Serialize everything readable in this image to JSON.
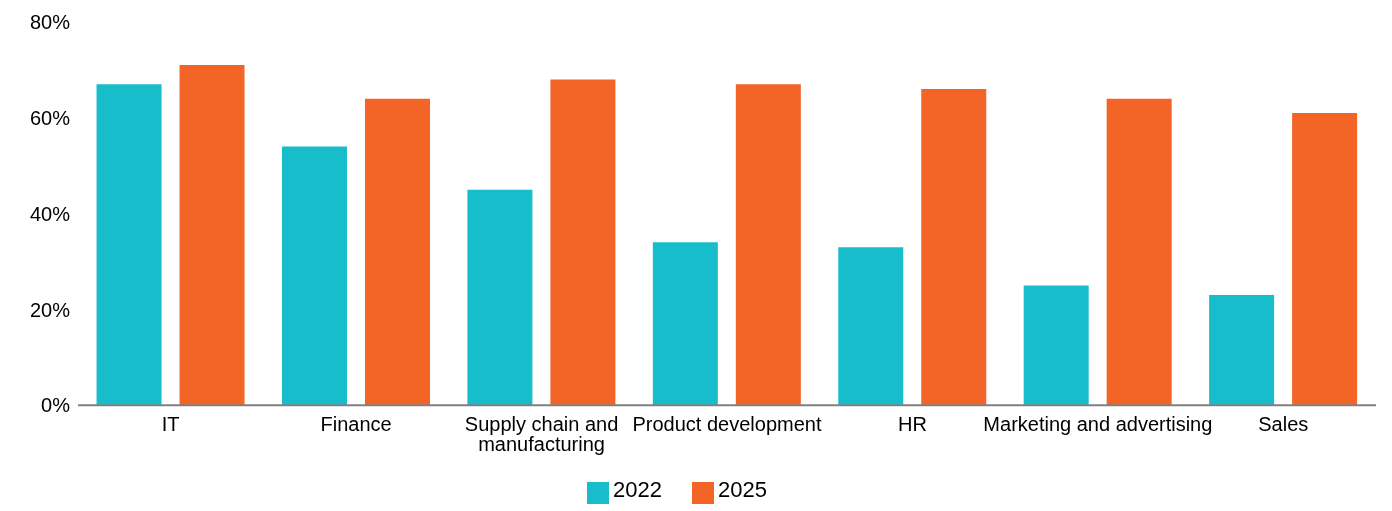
{
  "chart_data": {
    "type": "bar",
    "categories": [
      "IT",
      "Finance",
      "Supply chain and manufacturing",
      "Product development",
      "HR",
      "Marketing and advertising",
      "Sales"
    ],
    "series": [
      {
        "name": "2022",
        "color": "#17bdca",
        "values": [
          67,
          54,
          45,
          34,
          33,
          25,
          23
        ]
      },
      {
        "name": "2025",
        "color": "#f26527",
        "values": [
          71,
          64,
          68,
          67,
          66,
          64,
          61
        ]
      }
    ],
    "ylim": [
      0,
      80
    ],
    "yticks": [
      {
        "value": 0,
        "label": "0%"
      },
      {
        "value": 20,
        "label": "20%"
      },
      {
        "value": 40,
        "label": "40%"
      },
      {
        "value": 60,
        "label": "60%"
      },
      {
        "value": 80,
        "label": "80%"
      }
    ],
    "grid": false,
    "legend": "bottom"
  }
}
